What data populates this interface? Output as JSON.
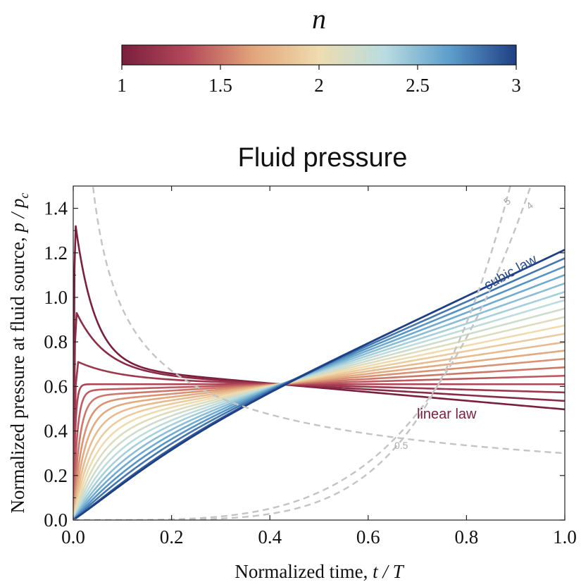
{
  "chart_data": {
    "type": "line",
    "title": "Fluid pressure",
    "xlabel_text": "Normalized time, ",
    "xlabel_var": "t / T",
    "ylabel_text": "Normalized pressure at fluid source, ",
    "ylabel_var": "p / p",
    "ylabel_sub": "c",
    "xlim": [
      0,
      1
    ],
    "ylim": [
      0,
      1.5
    ],
    "x_ticks": [
      "0.0",
      "0.2",
      "0.4",
      "0.6",
      "0.8",
      "1.0"
    ],
    "y_ticks": [
      "0.0",
      "0.2",
      "0.4",
      "0.6",
      "0.8",
      "1.0",
      "1.2",
      "1.4"
    ],
    "grid": false,
    "colorbar": {
      "label": "n",
      "range": [
        1,
        3
      ],
      "ticks": [
        "1",
        "1.5",
        "2",
        "2.5",
        "3"
      ],
      "colors": [
        "#7a1f3d",
        "#b5485a",
        "#e2a57a",
        "#eedcaf",
        "#b9dce0",
        "#5c9dcb",
        "#1f3f84"
      ]
    },
    "family": {
      "n_values": [
        1.0,
        1.1,
        1.2,
        1.3,
        1.4,
        1.5,
        1.6,
        1.7,
        1.8,
        1.9,
        2.0,
        2.1,
        2.2,
        2.3,
        2.4,
        2.5,
        2.6,
        2.7,
        2.8,
        2.9,
        3.0
      ],
      "end_values": [
        0.497,
        0.535,
        0.573,
        0.61,
        0.648,
        0.686,
        0.724,
        0.761,
        0.799,
        0.837,
        0.874,
        0.912,
        0.95,
        0.988,
        1.025,
        1.063,
        1.101,
        1.139,
        1.176,
        1.214,
        1.214
      ],
      "peaks": [
        {
          "n": 1.0,
          "x": 0.005,
          "y": 1.32
        },
        {
          "n": 1.1,
          "x": 0.007,
          "y": 0.93
        },
        {
          "n": 1.2,
          "x": 0.01,
          "y": 0.71
        }
      ],
      "crossing_value": 0.61,
      "crossing_x": 0.42
    },
    "reference_curves": [
      {
        "label": "5"
      },
      {
        "label": "4"
      },
      {
        "label": "0.5"
      }
    ],
    "annotations": [
      {
        "text": "cubic law",
        "color": "#2b4f8f"
      },
      {
        "text": "linear law",
        "color": "#7a1f3d"
      }
    ]
  }
}
